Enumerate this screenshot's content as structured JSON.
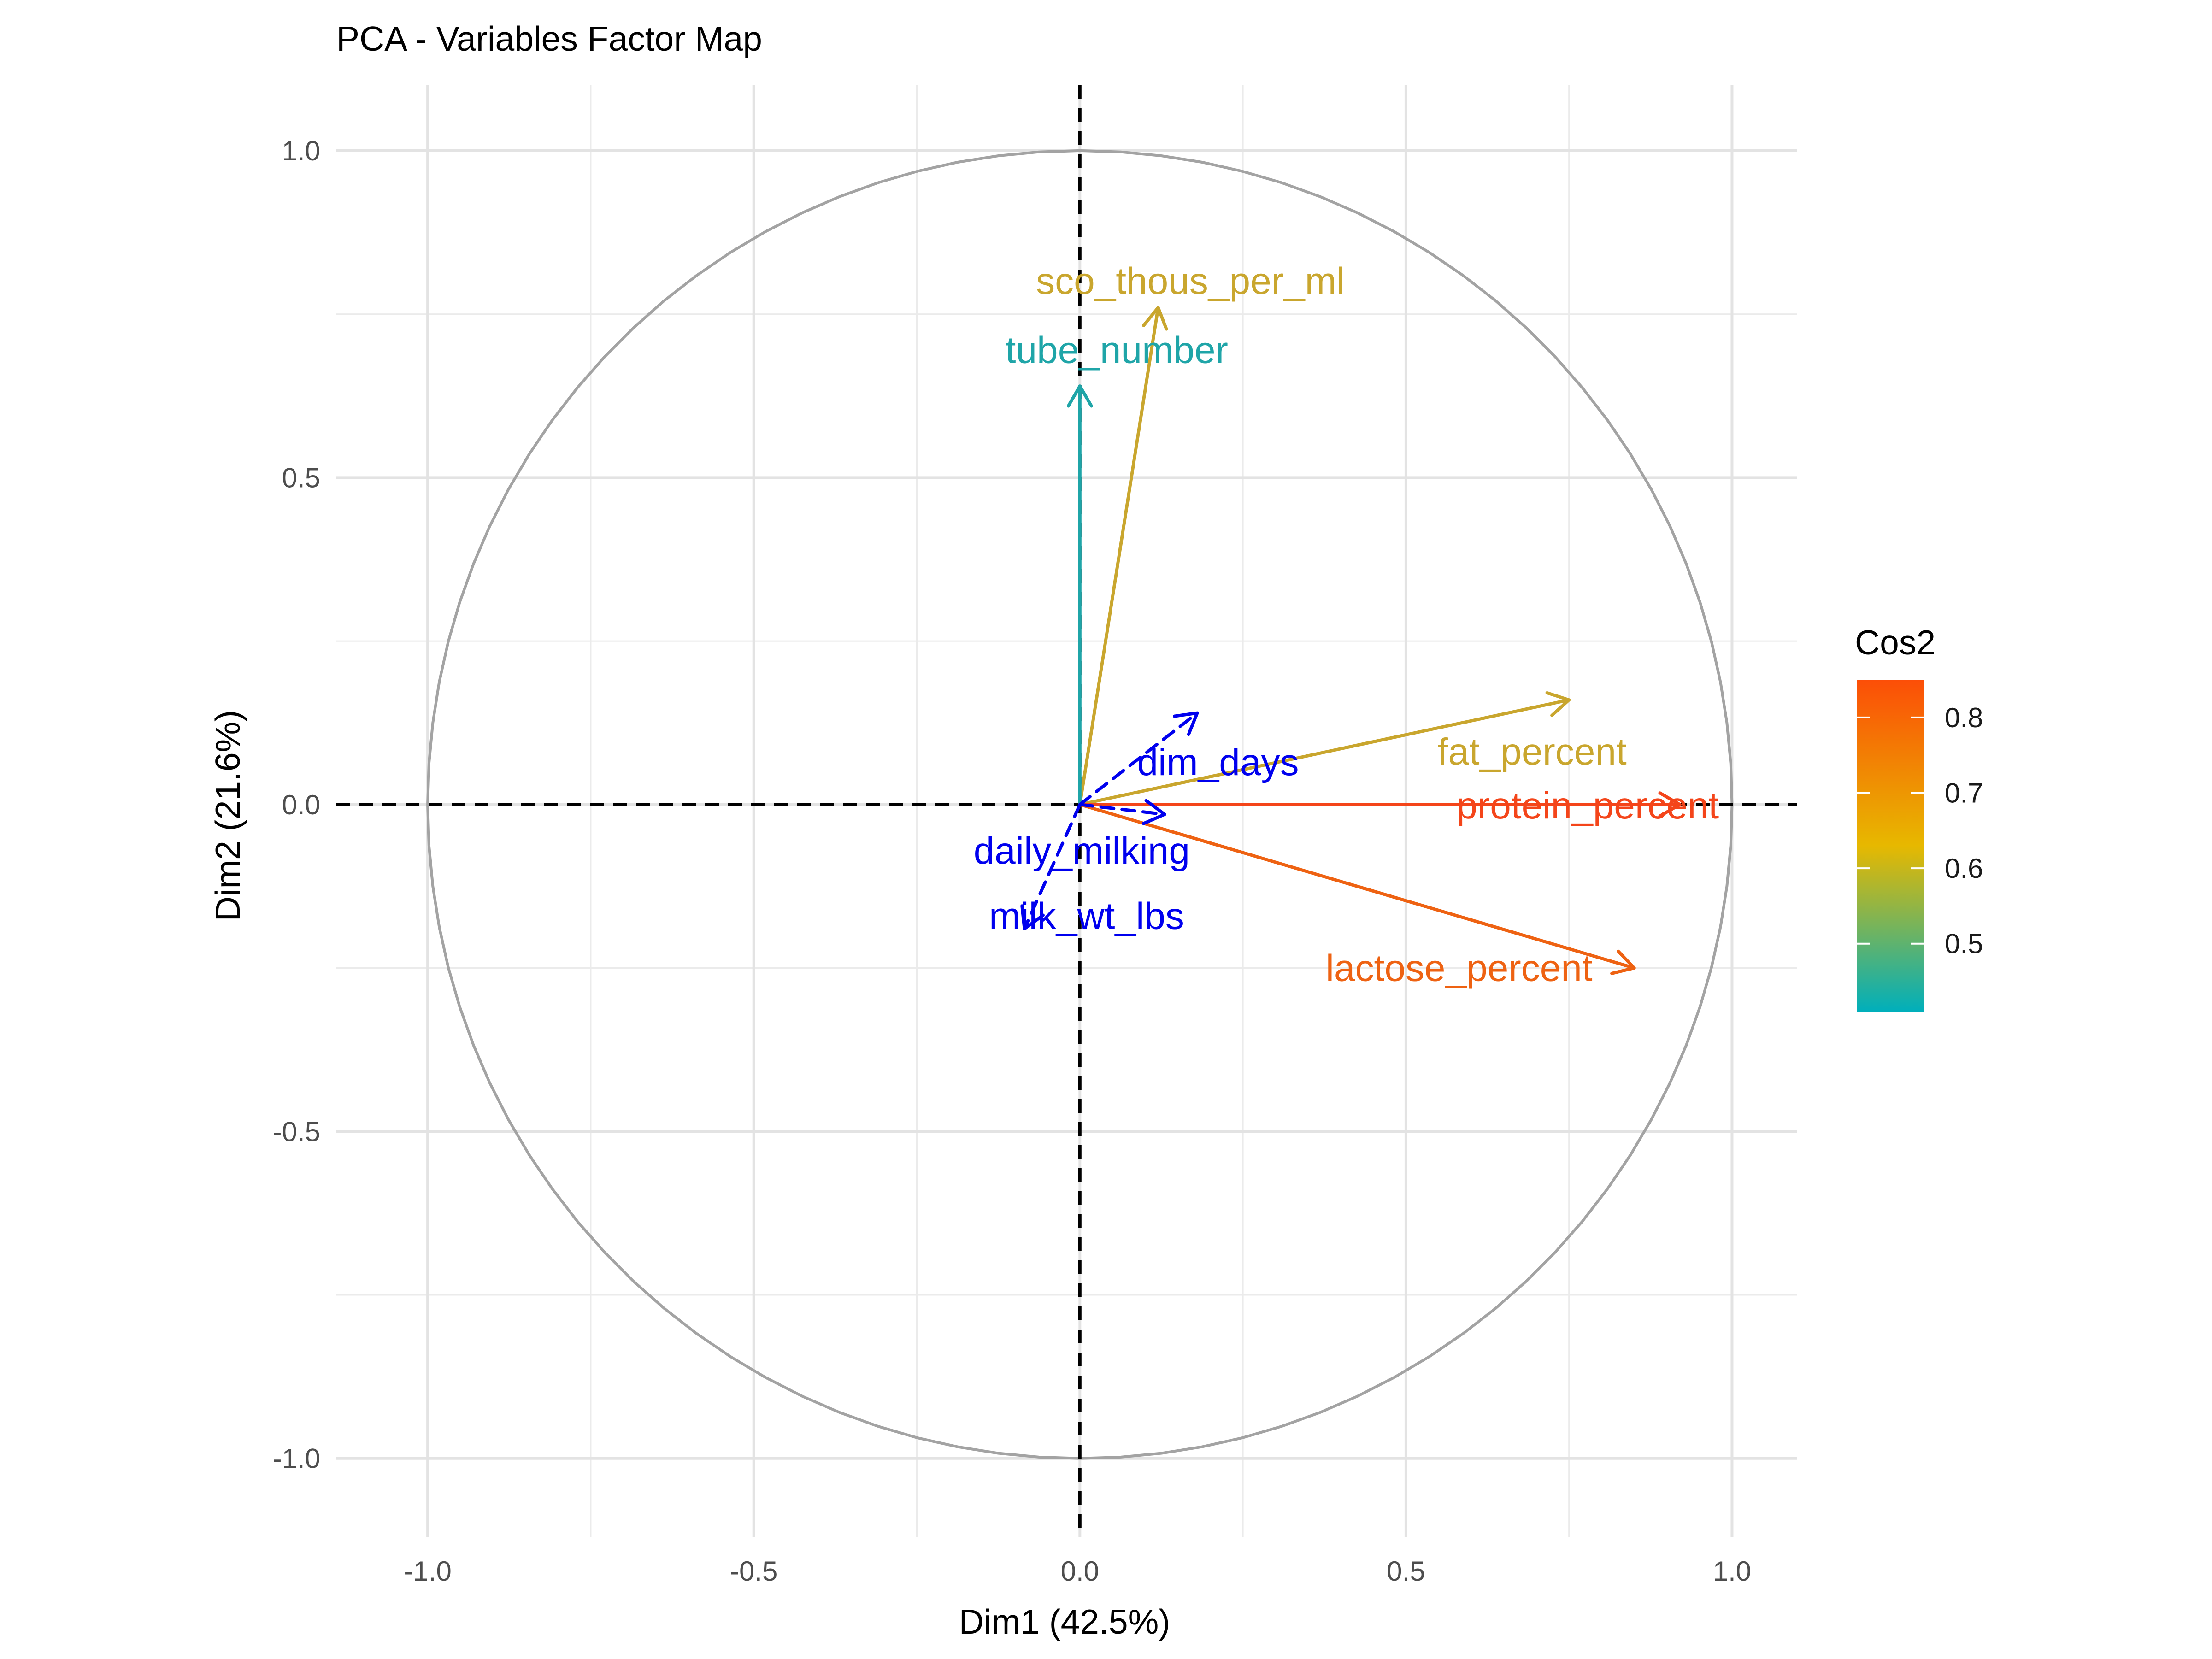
{
  "chart_data": {
    "type": "scatter",
    "chart_kind": "PCA variables correlation circle",
    "title": "PCA - Variables Factor Map",
    "xlabel": "Dim1 (42.5%)",
    "ylabel": "Dim2 (21.6%)",
    "xlim": [
      -1.14,
      1.1
    ],
    "ylim": [
      -1.12,
      1.1
    ],
    "x_ticks": [
      -1.0,
      -0.5,
      0.0,
      0.5,
      1.0
    ],
    "x_tick_labels": [
      "-1.0",
      "-0.5",
      "0.0",
      "0.5",
      "1.0"
    ],
    "y_ticks": [
      -1.0,
      -0.5,
      0.0,
      0.5,
      1.0
    ],
    "y_tick_labels": [
      "-1.0",
      "-0.5",
      "0.0",
      "0.5",
      "1.0"
    ],
    "grid": true,
    "unit_circle": true,
    "reference_lines": {
      "x": 0,
      "y": 0,
      "style": "dashed"
    },
    "legend": {
      "title": "Cos2",
      "placement": "right",
      "type": "continuous",
      "range": [
        0.41,
        0.85
      ],
      "ticks": [
        0.5,
        0.6,
        0.7,
        0.8
      ],
      "tick_labels": [
        "0.5",
        "0.6",
        "0.7",
        "0.8"
      ],
      "gradient_colors": [
        "#00AFBB",
        "#E7B800",
        "#FC4E07"
      ]
    },
    "series": [
      {
        "name": "sco_thous_per_ml",
        "x": 0.12,
        "y": 0.76,
        "cos2": 0.6,
        "color": "#C9A62E",
        "dashed": false
      },
      {
        "name": "tube_number",
        "x": 0.0,
        "y": 0.64,
        "cos2": 0.41,
        "color": "#1FA5A8",
        "dashed": false
      },
      {
        "name": "fat_percent",
        "x": 0.75,
        "y": 0.16,
        "cos2": 0.59,
        "color": "#C9A62E",
        "dashed": false
      },
      {
        "name": "protein_percent",
        "x": 0.92,
        "y": 0.0,
        "cos2": 0.85,
        "color": "#F4451A",
        "dashed": false
      },
      {
        "name": "lactose_percent",
        "x": 0.85,
        "y": -0.25,
        "cos2": 0.78,
        "color": "#EE6212",
        "dashed": false
      },
      {
        "name": "dim_days",
        "x": 0.18,
        "y": 0.14,
        "cos2": 0.05,
        "color": "#0000EE",
        "dashed": true
      },
      {
        "name": "daily_milking",
        "x": 0.13,
        "y": -0.015,
        "cos2": 0.02,
        "color": "#0000EE",
        "dashed": true
      },
      {
        "name": "milk_wt_lbs",
        "x": -0.085,
        "y": -0.19,
        "cos2": 0.04,
        "color": "#0000EE",
        "dashed": true
      }
    ]
  }
}
